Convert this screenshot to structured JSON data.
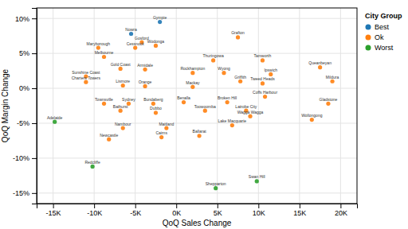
{
  "chart_data": {
    "type": "scatter",
    "xlabel": "QoQ Sales Change",
    "ylabel": "QoQ Margin Change",
    "xlim": [
      -17000,
      22000
    ],
    "ylim": [
      -0.165,
      0.115
    ],
    "xticks": [
      {
        "value": -15000,
        "label": "-15K"
      },
      {
        "value": -10000,
        "label": "-10K"
      },
      {
        "value": -5000,
        "label": "-5K"
      },
      {
        "value": 0,
        "label": "0K"
      },
      {
        "value": 5000,
        "label": "5K"
      },
      {
        "value": 10000,
        "label": "10K"
      },
      {
        "value": 15000,
        "label": "15K"
      },
      {
        "value": 20000,
        "label": "20K"
      }
    ],
    "yticks": [
      {
        "value": -0.15,
        "label": "-15%"
      },
      {
        "value": -0.1,
        "label": "-10%"
      },
      {
        "value": -0.05,
        "label": "-5%"
      },
      {
        "value": 0.0,
        "label": "0%"
      },
      {
        "value": 0.05,
        "label": "5%"
      },
      {
        "value": 0.1,
        "label": "10%"
      }
    ],
    "grid": true,
    "legend": "right",
    "legend_title": "City Group",
    "series": [
      {
        "name": "Best",
        "labels": [
          "Gympie",
          "Nowra"
        ],
        "x": [
          -2000,
          -5500
        ],
        "values": [
          0.095,
          0.078
        ]
      },
      {
        "name": "Ok",
        "labels": [
          "Gosford",
          "Cessnock",
          "Wodonga",
          "Grafton",
          "Maryborough",
          "Melbourne",
          "Gold Coast",
          "Armidale",
          "Thuringowa",
          "Tamworth",
          "Ipswich",
          "Queanbeyan",
          "Sunshine Coast",
          "Charters Towers",
          "Rockhampton",
          "Wyong",
          "Griffith",
          "Tweed Heads",
          "Mildura",
          "Orange",
          "Lismore",
          "Mackay",
          "Townsville",
          "Sydney",
          "Bundaberg",
          "Benalla",
          "Broken Hill",
          "Coffs Harbour",
          "Gladstone",
          "Bathurst",
          "Dubbo",
          "Toowoomba",
          "Latrobe City",
          "Wagga Wagga",
          "Wollongong",
          "Nambour",
          "Maitland",
          "Lake Macquarie",
          "Newcastle",
          "Cairns",
          "Ballarat"
        ],
        "x": [
          -4200,
          -5000,
          -2500,
          7500,
          -9500,
          -8800,
          -6800,
          -3800,
          4500,
          10500,
          11500,
          17500,
          -11000,
          -11000,
          2000,
          5800,
          7800,
          10500,
          19000,
          -3800,
          -6500,
          2000,
          -8800,
          -5800,
          -2800,
          900,
          6200,
          10800,
          18500,
          -6800,
          -2500,
          3500,
          8500,
          9000,
          16500,
          -6500,
          -1200,
          6800,
          -8200,
          -1800,
          2800
        ],
        "values": [
          0.066,
          0.058,
          0.061,
          0.073,
          0.058,
          0.045,
          0.028,
          0.027,
          0.04,
          0.04,
          0.02,
          0.03,
          0.017,
          0.009,
          0.022,
          0.022,
          0.01,
          0.007,
          0.01,
          0.003,
          0.004,
          0.002,
          -0.022,
          -0.022,
          -0.022,
          -0.02,
          -0.02,
          -0.012,
          -0.022,
          -0.032,
          -0.035,
          -0.032,
          -0.032,
          -0.04,
          -0.045,
          -0.057,
          -0.057,
          -0.053,
          -0.073,
          -0.07,
          -0.068
        ]
      },
      {
        "name": "Worst",
        "labels": [
          "Adelaide",
          "Redcliffe",
          "Shepparton",
          "Swan Hill"
        ],
        "x": [
          -14800,
          -10200,
          4800,
          9800
        ],
        "values": [
          -0.048,
          -0.112,
          -0.143,
          -0.133
        ]
      }
    ]
  }
}
